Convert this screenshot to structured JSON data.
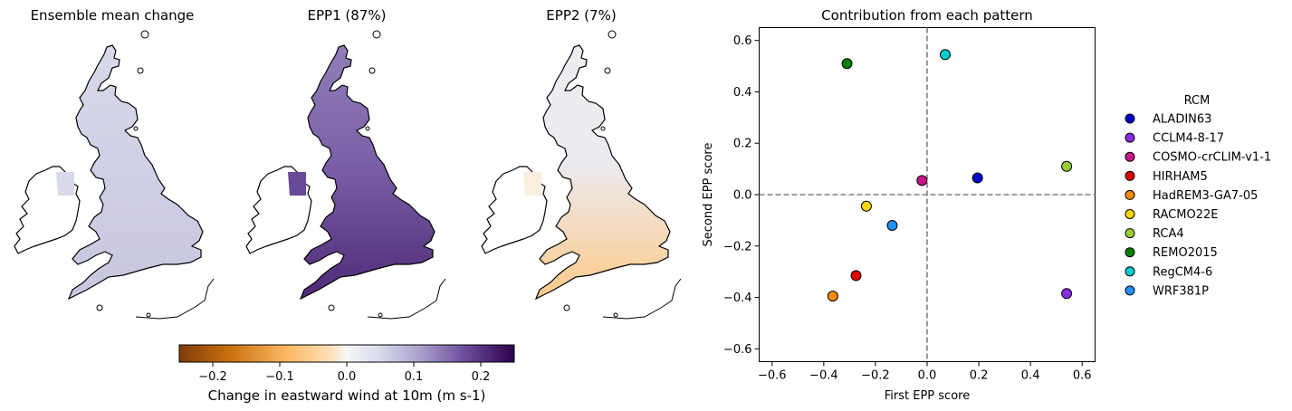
{
  "colors": {
    "cmap_low": "#7f3b08",
    "cmap_mid": "#f7f7f7",
    "cmap_high": "#2d004b",
    "zero_line": "#808080",
    "coastline": "#000000"
  },
  "maps": [
    {
      "title": "Ensemble mean change",
      "fill_value": 0.06,
      "fill_south": 0.07,
      "ireland_value": 0.05
    },
    {
      "title": "EPP1 (87%)",
      "fill_value": 0.16,
      "fill_south": 0.21,
      "ireland_value": 0.18
    },
    {
      "title": "EPP2 (7%)",
      "fill_value": 0.02,
      "fill_south": -0.06,
      "ireland_value": -0.01
    }
  ],
  "colorbar": {
    "label": "Change in eastward wind at 10m (m s-1)",
    "range": [
      -0.25,
      0.25
    ],
    "ticks": [
      "−0.2",
      "−0.1",
      "0.0",
      "0.1",
      "0.2"
    ],
    "tick_values": [
      -0.2,
      -0.1,
      0.0,
      0.1,
      0.2
    ]
  },
  "chart_data": {
    "type": "scatter",
    "title": "Contribution from each pattern",
    "xlabel": "First EPP score",
    "ylabel": "Second EPP score",
    "xlim": [
      -0.65,
      0.65
    ],
    "ylim": [
      -0.65,
      0.65
    ],
    "xticks": [
      "−0.6",
      "−0.4",
      "−0.2",
      "0.0",
      "0.2",
      "0.4",
      "0.6"
    ],
    "yticks": [
      "−0.6",
      "−0.4",
      "−0.2",
      "0.0",
      "0.2",
      "0.4",
      "0.6"
    ],
    "tick_values": [
      -0.6,
      -0.4,
      -0.2,
      0.0,
      0.2,
      0.4,
      0.6
    ],
    "grid": false,
    "legend_title": "RCM",
    "legend_position": "right, outside plot",
    "series": [
      {
        "name": "ALADIN63",
        "color": "#0000cd",
        "x": 0.195,
        "y": 0.065
      },
      {
        "name": "CCLM4-8-17",
        "color": "#8a2be2",
        "x": 0.54,
        "y": -0.385
      },
      {
        "name": "COSMO-crCLIM-v1-1",
        "color": "#c71585",
        "x": -0.02,
        "y": 0.055
      },
      {
        "name": "HIRHAM5",
        "color": "#e00000",
        "x": -0.275,
        "y": -0.315
      },
      {
        "name": "HadREM3-GA7-05",
        "color": "#ff8c00",
        "x": -0.365,
        "y": -0.395
      },
      {
        "name": "RACMO22E",
        "color": "#ffd700",
        "x": -0.235,
        "y": -0.045
      },
      {
        "name": "RCA4",
        "color": "#9acd32",
        "x": 0.54,
        "y": 0.11
      },
      {
        "name": "REMO2015",
        "color": "#008000",
        "x": -0.31,
        "y": 0.51
      },
      {
        "name": "RegCM4-6",
        "color": "#00ced1",
        "x": 0.07,
        "y": 0.545
      },
      {
        "name": "WRF381P",
        "color": "#1e90ff",
        "x": -0.135,
        "y": -0.12
      }
    ]
  }
}
